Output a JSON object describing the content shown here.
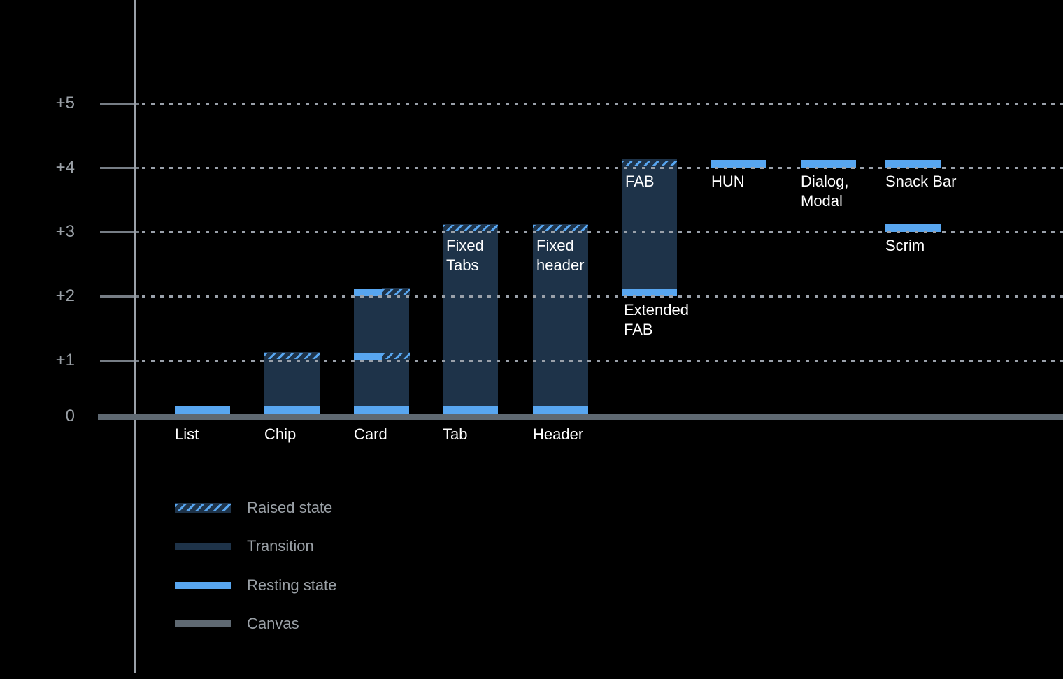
{
  "chart_data": {
    "type": "bar",
    "title": "",
    "subtitle": "",
    "description": "Elevation diagram of UI components: resting state, transition range and raised state per component",
    "background": "#000000",
    "grid": "dotted horizontal lines at each elevation level, drawn above bars",
    "y_axis": {
      "range": [
        0,
        5
      ],
      "ticks": [
        {
          "label": "+5",
          "level": 5
        },
        {
          "label": "+4",
          "level": 4
        },
        {
          "label": "+3",
          "level": 3
        },
        {
          "label": "+2",
          "level": 2
        },
        {
          "label": "+1",
          "level": 1
        },
        {
          "label": "0",
          "level": 0
        }
      ]
    },
    "colors": {
      "resting_state": "#58a6f0",
      "transition": "#1e3349",
      "canvas": "#5f6972",
      "gridline": "#9aa1aa",
      "axis": "#9aa0a8",
      "tick": "#767d85",
      "text_gray": "#9aa0a6",
      "text_white": "#ffffff"
    },
    "bars": [
      {
        "name": "list",
        "col": 0,
        "axis_label": "List",
        "bands": [
          {
            "level": 0,
            "type": "rest"
          }
        ]
      },
      {
        "name": "chip",
        "col": 1,
        "axis_label": "Chip",
        "body": [
          0,
          1
        ],
        "bands": [
          {
            "level": 1,
            "type": "hatch"
          },
          {
            "level": 0,
            "type": "rest"
          }
        ]
      },
      {
        "name": "card",
        "col": 2,
        "axis_label": "Card",
        "body": [
          0,
          2
        ],
        "bands": [
          {
            "level": 2,
            "type": "split"
          },
          {
            "level": 1,
            "type": "split"
          },
          {
            "level": 0,
            "type": "rest"
          }
        ]
      },
      {
        "name": "tab",
        "col": 3,
        "axis_label": "Tab",
        "body": [
          0,
          3
        ],
        "inner_label": {
          "lines": [
            "Fixed",
            "Tabs"
          ]
        },
        "bands": [
          {
            "level": 3,
            "type": "hatch"
          },
          {
            "level": 0,
            "type": "rest"
          }
        ]
      },
      {
        "name": "header",
        "col": 4,
        "axis_label": "Header",
        "body": [
          0,
          3
        ],
        "inner_label": {
          "lines": [
            "Fixed",
            "header"
          ]
        },
        "bands": [
          {
            "level": 3,
            "type": "hatch"
          },
          {
            "level": 0,
            "type": "rest"
          }
        ]
      },
      {
        "name": "fab",
        "col": 5,
        "body": [
          2,
          4
        ],
        "inner_label": {
          "lines": [
            "FAB"
          ]
        },
        "below_label": {
          "lines": [
            "Extended",
            "FAB"
          ],
          "at_level": 2
        },
        "bands": [
          {
            "level": 4,
            "type": "hatch"
          },
          {
            "level": 2,
            "type": "rest"
          }
        ]
      },
      {
        "name": "hun",
        "col": 6,
        "below_label": {
          "lines": [
            "HUN"
          ],
          "at_level": 4
        },
        "bands": [
          {
            "level": 4,
            "type": "rest"
          }
        ]
      },
      {
        "name": "dialog-modal",
        "col": 7,
        "below_label": {
          "lines": [
            "Dialog,",
            "Modal"
          ],
          "at_level": 4
        },
        "bands": [
          {
            "level": 4,
            "type": "rest"
          }
        ]
      },
      {
        "name": "snack-bar",
        "col": 8,
        "below_label": {
          "lines": [
            "Snack Bar"
          ],
          "at_level": 4
        },
        "bands": [
          {
            "level": 4,
            "type": "rest"
          }
        ]
      },
      {
        "name": "scrim",
        "col": 8,
        "below_label": {
          "lines": [
            "Scrim"
          ],
          "at_level": 3
        },
        "bands": [
          {
            "level": 3,
            "type": "rest"
          }
        ]
      }
    ],
    "legend": {
      "position": "bottom-left",
      "items": [
        {
          "label": "Raised state",
          "swatch": "hatched"
        },
        {
          "label": "Transition",
          "swatch": "solid-transition"
        },
        {
          "label": "Resting state",
          "swatch": "solid-resting"
        },
        {
          "label": "Canvas",
          "swatch": "solid-canvas"
        }
      ]
    }
  }
}
